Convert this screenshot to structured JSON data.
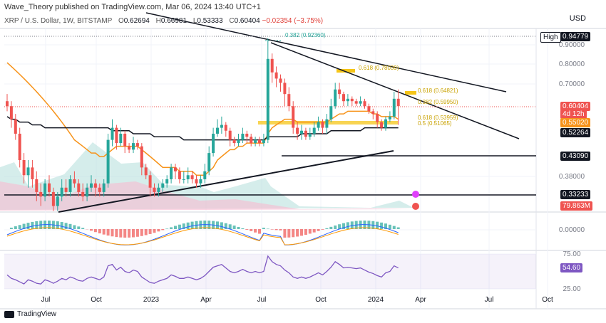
{
  "header": {
    "publisher": "Wave_Theory published on TradingView.com, Mar 06, 2024 13:40 UTC+1",
    "symbol": "XRP / U.S. Dollar, 1W, BITSTAMP",
    "open_label": "O",
    "open": "0.62694",
    "high_label": "H",
    "high": "0.66981",
    "low_label": "L",
    "low": "0.53333",
    "close_label": "C",
    "close": "0.60404",
    "change": "−0.02354 (−3.75%)",
    "currency": "USD"
  },
  "footer": {
    "brand": "TradingView"
  },
  "colors": {
    "up": "#26a69a",
    "down": "#ef5350",
    "ema": "#f7931a",
    "sma": "#131722",
    "fib": "#f5c518",
    "volume_up": "#b2dfdb",
    "volume_down": "#f8bbd0",
    "rsi": "#7e57c2",
    "macd": "#2962ff",
    "signal": "#ff9800"
  },
  "chart_data": {
    "type": "candlestick",
    "x_ticks": [
      "Jul",
      "Oct",
      "2023",
      "Apr",
      "Jul",
      "Oct",
      "2024",
      "Apr",
      "Jul",
      "Oct"
    ],
    "y_ticks": [
      "0.90000",
      "0.80000",
      "0.70000",
      "0.38000",
      "0.00000",
      "75.00",
      "25.00"
    ],
    "price_boxes": [
      {
        "label": "High",
        "value": "0.94779",
        "style": "dark"
      },
      {
        "value": "0.60404",
        "style": "red"
      },
      {
        "value": "4d 12h",
        "style": "red"
      },
      {
        "value": "0.55020",
        "style": "orange"
      },
      {
        "value": "0.52264",
        "style": "dark"
      },
      {
        "value": "0.43090",
        "style": "dark"
      },
      {
        "value": "0.33233",
        "style": "dark"
      },
      {
        "value": "79.863M",
        "style": "red"
      },
      {
        "value": "54.60",
        "style": "purple"
      }
    ],
    "fib_labels": [
      "0.382 (0.92360)",
      "0.618 (0.78039)",
      "0.618 (0.64821)",
      "0.382 (0.59950)",
      "0.618 (0.53959)",
      "0.5 (0.51065)"
    ],
    "candles": [
      [
        0.62,
        0.6,
        0.65,
        0.58
      ],
      [
        0.6,
        0.55,
        0.62,
        0.52
      ],
      [
        0.55,
        0.5,
        0.57,
        0.48
      ],
      [
        0.5,
        0.42,
        0.52,
        0.4
      ],
      [
        0.42,
        0.38,
        0.44,
        0.36
      ],
      [
        0.38,
        0.4,
        0.42,
        0.35
      ],
      [
        0.4,
        0.37,
        0.42,
        0.35
      ],
      [
        0.37,
        0.34,
        0.39,
        0.32
      ],
      [
        0.34,
        0.33,
        0.36,
        0.31
      ],
      [
        0.33,
        0.36,
        0.37,
        0.32
      ],
      [
        0.36,
        0.34,
        0.38,
        0.33
      ],
      [
        0.34,
        0.31,
        0.35,
        0.3
      ],
      [
        0.31,
        0.33,
        0.34,
        0.3
      ],
      [
        0.33,
        0.35,
        0.37,
        0.32
      ],
      [
        0.35,
        0.34,
        0.37,
        0.33
      ],
      [
        0.34,
        0.37,
        0.38,
        0.33
      ],
      [
        0.37,
        0.36,
        0.39,
        0.35
      ],
      [
        0.36,
        0.34,
        0.37,
        0.33
      ],
      [
        0.34,
        0.33,
        0.36,
        0.32
      ],
      [
        0.33,
        0.35,
        0.36,
        0.32
      ],
      [
        0.35,
        0.36,
        0.38,
        0.34
      ],
      [
        0.36,
        0.35,
        0.37,
        0.33
      ],
      [
        0.35,
        0.34,
        0.36,
        0.33
      ],
      [
        0.34,
        0.36,
        0.37,
        0.33
      ],
      [
        0.36,
        0.48,
        0.5,
        0.35
      ],
      [
        0.48,
        0.52,
        0.55,
        0.46
      ],
      [
        0.52,
        0.47,
        0.53,
        0.45
      ],
      [
        0.47,
        0.5,
        0.52,
        0.46
      ],
      [
        0.5,
        0.46,
        0.51,
        0.44
      ],
      [
        0.46,
        0.45,
        0.47,
        0.44
      ],
      [
        0.45,
        0.47,
        0.49,
        0.44
      ],
      [
        0.47,
        0.46,
        0.48,
        0.45
      ],
      [
        0.46,
        0.4,
        0.47,
        0.38
      ],
      [
        0.4,
        0.38,
        0.41,
        0.37
      ],
      [
        0.38,
        0.35,
        0.39,
        0.33
      ],
      [
        0.35,
        0.34,
        0.36,
        0.33
      ],
      [
        0.34,
        0.35,
        0.36,
        0.33
      ],
      [
        0.35,
        0.36,
        0.37,
        0.34
      ],
      [
        0.36,
        0.37,
        0.38,
        0.35
      ],
      [
        0.37,
        0.4,
        0.41,
        0.36
      ],
      [
        0.4,
        0.39,
        0.41,
        0.37
      ],
      [
        0.39,
        0.37,
        0.4,
        0.36
      ],
      [
        0.37,
        0.37,
        0.39,
        0.36
      ],
      [
        0.37,
        0.38,
        0.4,
        0.36
      ],
      [
        0.38,
        0.37,
        0.39,
        0.36
      ],
      [
        0.37,
        0.36,
        0.38,
        0.35
      ],
      [
        0.36,
        0.37,
        0.38,
        0.35
      ],
      [
        0.37,
        0.39,
        0.41,
        0.36
      ],
      [
        0.39,
        0.44,
        0.46,
        0.38
      ],
      [
        0.44,
        0.5,
        0.52,
        0.43
      ],
      [
        0.5,
        0.52,
        0.55,
        0.49
      ],
      [
        0.52,
        0.53,
        0.56,
        0.5
      ],
      [
        0.53,
        0.51,
        0.54,
        0.49
      ],
      [
        0.51,
        0.48,
        0.52,
        0.46
      ],
      [
        0.48,
        0.47,
        0.49,
        0.46
      ],
      [
        0.47,
        0.48,
        0.5,
        0.46
      ],
      [
        0.48,
        0.5,
        0.52,
        0.47
      ],
      [
        0.5,
        0.49,
        0.51,
        0.47
      ],
      [
        0.49,
        0.47,
        0.5,
        0.46
      ],
      [
        0.47,
        0.48,
        0.49,
        0.46
      ],
      [
        0.48,
        0.47,
        0.49,
        0.46
      ],
      [
        0.47,
        0.48,
        0.5,
        0.46
      ],
      [
        0.48,
        0.82,
        0.94,
        0.47
      ],
      [
        0.82,
        0.75,
        0.85,
        0.7
      ],
      [
        0.75,
        0.72,
        0.78,
        0.68
      ],
      [
        0.72,
        0.7,
        0.74,
        0.66
      ],
      [
        0.7,
        0.65,
        0.72,
        0.6
      ],
      [
        0.65,
        0.6,
        0.68,
        0.58
      ],
      [
        0.6,
        0.52,
        0.62,
        0.5
      ],
      [
        0.52,
        0.5,
        0.54,
        0.48
      ],
      [
        0.5,
        0.51,
        0.53,
        0.48
      ],
      [
        0.51,
        0.49,
        0.52,
        0.48
      ],
      [
        0.49,
        0.5,
        0.52,
        0.48
      ],
      [
        0.5,
        0.52,
        0.54,
        0.49
      ],
      [
        0.52,
        0.54,
        0.56,
        0.51
      ],
      [
        0.54,
        0.52,
        0.55,
        0.5
      ],
      [
        0.52,
        0.55,
        0.57,
        0.5
      ],
      [
        0.55,
        0.6,
        0.63,
        0.54
      ],
      [
        0.6,
        0.67,
        0.7,
        0.59
      ],
      [
        0.67,
        0.65,
        0.7,
        0.63
      ],
      [
        0.65,
        0.62,
        0.66,
        0.6
      ],
      [
        0.62,
        0.63,
        0.65,
        0.6
      ],
      [
        0.63,
        0.62,
        0.64,
        0.6
      ],
      [
        0.62,
        0.61,
        0.63,
        0.6
      ],
      [
        0.61,
        0.62,
        0.64,
        0.6
      ],
      [
        0.62,
        0.6,
        0.63,
        0.59
      ],
      [
        0.6,
        0.58,
        0.61,
        0.57
      ],
      [
        0.58,
        0.57,
        0.59,
        0.55
      ],
      [
        0.57,
        0.54,
        0.58,
        0.52
      ],
      [
        0.54,
        0.52,
        0.55,
        0.51
      ],
      [
        0.52,
        0.55,
        0.56,
        0.51
      ],
      [
        0.55,
        0.56,
        0.58,
        0.54
      ],
      [
        0.56,
        0.63,
        0.66,
        0.55
      ],
      [
        0.63,
        0.6,
        0.67,
        0.53
      ]
    ],
    "ema": [
      0.8,
      0.78,
      0.76,
      0.74,
      0.72,
      0.7,
      0.68,
      0.66,
      0.64,
      0.62,
      0.6,
      0.58,
      0.56,
      0.54,
      0.52,
      0.5,
      0.48,
      0.47,
      0.46,
      0.45,
      0.44,
      0.44,
      0.43,
      0.43,
      0.44,
      0.45,
      0.46,
      0.46,
      0.46,
      0.46,
      0.46,
      0.46,
      0.45,
      0.44,
      0.43,
      0.42,
      0.41,
      0.4,
      0.4,
      0.4,
      0.4,
      0.39,
      0.39,
      0.39,
      0.39,
      0.38,
      0.38,
      0.38,
      0.39,
      0.4,
      0.42,
      0.43,
      0.44,
      0.45,
      0.45,
      0.46,
      0.46,
      0.47,
      0.47,
      0.47,
      0.47,
      0.47,
      0.5,
      0.52,
      0.53,
      0.54,
      0.55,
      0.55,
      0.55,
      0.54,
      0.54,
      0.54,
      0.54,
      0.54,
      0.54,
      0.54,
      0.54,
      0.55,
      0.56,
      0.57,
      0.57,
      0.58,
      0.58,
      0.58,
      0.58,
      0.58,
      0.58,
      0.57,
      0.57,
      0.56,
      0.56,
      0.56,
      0.56,
      0.55
    ],
    "sma": [
      0.56,
      0.55,
      0.55,
      0.54,
      0.54,
      0.54,
      0.53,
      0.53,
      0.53,
      0.52,
      0.52,
      0.52,
      0.52,
      0.52,
      0.52,
      0.52,
      0.52,
      0.52,
      0.52,
      0.52,
      0.52,
      0.52,
      0.52,
      0.52,
      0.52,
      0.51,
      0.51,
      0.51,
      0.51,
      0.51,
      0.5,
      0.5,
      0.5,
      0.5,
      0.5,
      0.49,
      0.49,
      0.49,
      0.49,
      0.49,
      0.49,
      0.49,
      0.48,
      0.48,
      0.48,
      0.48,
      0.48,
      0.48,
      0.48,
      0.48,
      0.48,
      0.48,
      0.48,
      0.48,
      0.48,
      0.48,
      0.48,
      0.48,
      0.48,
      0.48,
      0.48,
      0.48,
      0.49,
      0.49,
      0.49,
      0.49,
      0.49,
      0.49,
      0.49,
      0.49,
      0.5,
      0.5,
      0.5,
      0.5,
      0.5,
      0.5,
      0.5,
      0.51,
      0.51,
      0.51,
      0.51,
      0.51,
      0.51,
      0.51,
      0.51,
      0.52,
      0.52,
      0.52,
      0.52,
      0.52,
      0.52,
      0.52,
      0.52,
      0.52
    ],
    "rsi": [
      45,
      40,
      38,
      35,
      32,
      38,
      36,
      33,
      32,
      38,
      36,
      33,
      36,
      40,
      38,
      42,
      40,
      37,
      36,
      40,
      42,
      40,
      38,
      42,
      58,
      60,
      52,
      56,
      50,
      48,
      52,
      50,
      42,
      38,
      34,
      33,
      36,
      38,
      40,
      45,
      43,
      40,
      40,
      42,
      40,
      38,
      40,
      44,
      50,
      56,
      58,
      60,
      55,
      50,
      48,
      50,
      53,
      50,
      48,
      50,
      48,
      50,
      72,
      64,
      60,
      58,
      52,
      48,
      42,
      40,
      42,
      40,
      42,
      45,
      48,
      45,
      50,
      56,
      64,
      60,
      55,
      56,
      55,
      54,
      55,
      52,
      49,
      47,
      44,
      42,
      48,
      50,
      58,
      55
    ]
  }
}
